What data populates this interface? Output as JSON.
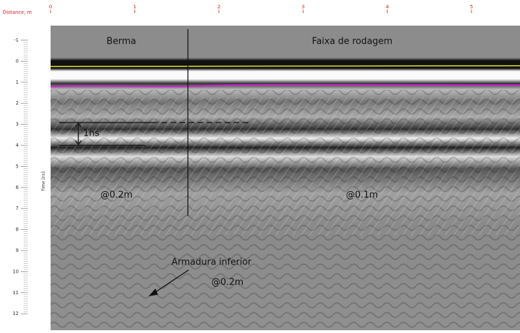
{
  "axes": {
    "x_title": "Distance, m",
    "x_ticks": [
      "0",
      "1",
      "2",
      "3",
      "4",
      "5"
    ],
    "y_title": "Time [ns]",
    "y_ticks": [
      "-1",
      "0",
      "1",
      "2",
      "3",
      "4",
      "5",
      "6",
      "7",
      "8",
      "9",
      "10",
      "11",
      "12"
    ]
  },
  "annotations": {
    "left_zone": "Berma",
    "right_zone": "Faixa de rodagem",
    "interval": "1ns",
    "left_spacing": "@0.2m",
    "right_spacing": "@0.1m",
    "rebar": "Armadura inferior",
    "rebar_spacing": "@0.2m"
  }
}
